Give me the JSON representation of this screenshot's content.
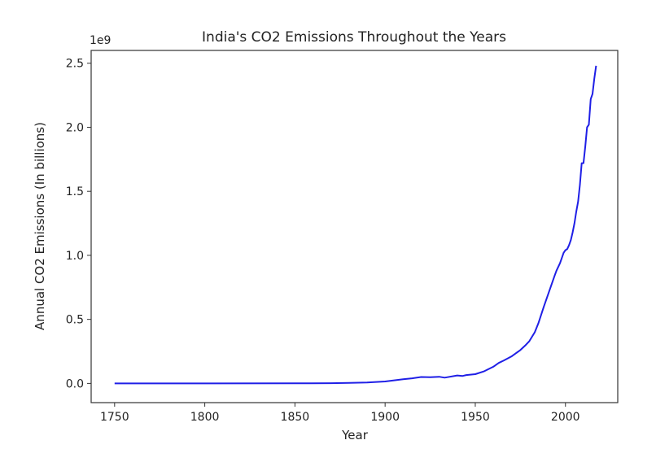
{
  "chart_data": {
    "type": "line",
    "title": "India's CO2 Emissions Throughout the Years",
    "xlabel": "Year",
    "ylabel": "Annual CO2 Emissions (In billions)",
    "y_offset_label": "1e9",
    "xlim": [
      1737,
      2029
    ],
    "ylim": [
      -0.15,
      2.6
    ],
    "x_ticks": [
      1750,
      1800,
      1850,
      1900,
      1950,
      2000
    ],
    "y_ticks": [
      0.0,
      0.5,
      1.0,
      1.5,
      2.0,
      2.5
    ],
    "y_tick_labels": [
      "0.0",
      "0.5",
      "1.0",
      "1.5",
      "2.0",
      "2.5"
    ],
    "grid": false,
    "line_color": "#1f1fe6",
    "series": [
      {
        "x": [
          1750,
          1800,
          1850,
          1870,
          1880,
          1890,
          1900,
          1910,
          1915,
          1920,
          1925,
          1930,
          1933,
          1940,
          1943,
          1945,
          1950,
          1955,
          1960,
          1963,
          1966,
          1970,
          1975,
          1978,
          1980,
          1983,
          1985,
          1988,
          1990,
          1992,
          1994,
          1995,
          1997,
          1999,
          2000,
          2001,
          2002,
          2003,
          2004,
          2005,
          2006,
          2007,
          2008,
          2009,
          2010,
          2011,
          2012,
          2013,
          2014,
          2015,
          2016,
          2017
        ],
        "y": [
          0,
          0,
          0.0005,
          0.002,
          0.004,
          0.007,
          0.015,
          0.032,
          0.04,
          0.05,
          0.048,
          0.052,
          0.045,
          0.062,
          0.058,
          0.065,
          0.072,
          0.095,
          0.13,
          0.16,
          0.18,
          0.21,
          0.26,
          0.3,
          0.33,
          0.4,
          0.47,
          0.6,
          0.68,
          0.76,
          0.84,
          0.88,
          0.94,
          1.02,
          1.04,
          1.05,
          1.08,
          1.12,
          1.18,
          1.25,
          1.34,
          1.42,
          1.55,
          1.72,
          1.72,
          1.85,
          2.0,
          2.02,
          2.22,
          2.26,
          2.38,
          2.48
        ]
      }
    ]
  }
}
